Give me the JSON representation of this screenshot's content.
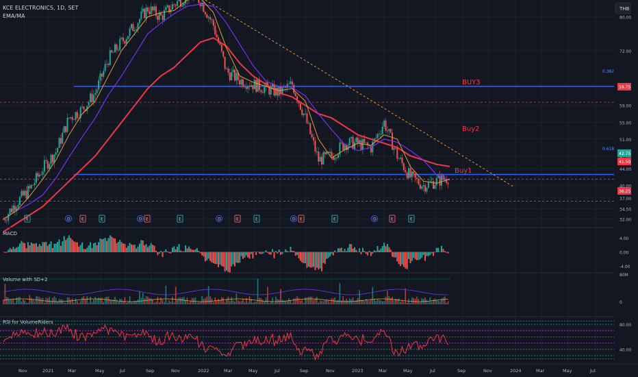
{
  "header": {
    "symbol": "KCE ELECTRONICS, 1D, SET",
    "indicator": "EMA/MA",
    "currency": "THB"
  },
  "panes": {
    "macd_title": "MACD",
    "volume_title": "Volume with SD+2",
    "rsi_title": "RSI for VolumeRiders"
  },
  "annotations": {
    "buy1": "Buy1",
    "buy2": "Buy2",
    "buy3": "BUY3",
    "fib_0382": "0.382(63",
    "fib_0618": "0.618(42"
  },
  "price_badges": {
    "upper_red": "59.75",
    "green": "42.75",
    "red_mid": "41.50",
    "red_low": "36.25"
  },
  "events": [
    "E",
    "D",
    "E",
    "E",
    "D",
    "E",
    "E",
    "D",
    "E",
    "E",
    "D",
    "E",
    "E",
    "D",
    "E",
    "E"
  ],
  "colors": {
    "background": "#131722",
    "grid": "#1e222d",
    "up": "#26a69a",
    "down": "#ef5350",
    "ema200": "#f23645",
    "ma_purple": "#7b2ff7",
    "ema_orange": "#e89c3a",
    "fib_blue": "#2962ff",
    "trend_orange": "#f7931a",
    "rsi": "#f23645"
  },
  "chart_data": {
    "type": "line",
    "title": "KCE ELECTRONICS, 1D, SET",
    "ylabel": "THB",
    "ylim": [
      30,
      84
    ],
    "y_ticks": [
      "80.00",
      "72.00",
      "64.00",
      "59.00",
      "55.00",
      "51.00",
      "47.00",
      "44.00",
      "40.00",
      "37.00",
      "34.50",
      "32.00"
    ],
    "x_ticks": [
      "Nov",
      "2021",
      "Mar",
      "May",
      "Jul",
      "Sep",
      "Nov",
      "2022",
      "Mar",
      "May",
      "Jul",
      "Sep",
      "Nov",
      "2023",
      "Mar",
      "May",
      "Jul",
      "Sep",
      "Nov",
      "2024",
      "Mar",
      "May",
      "Jul"
    ],
    "x": [
      "2020-10",
      "2020-11",
      "2020-12",
      "2021-01",
      "2021-02",
      "2021-03",
      "2021-04",
      "2021-05",
      "2021-06",
      "2021-07",
      "2021-08",
      "2021-09",
      "2021-10",
      "2021-11",
      "2021-12",
      "2022-01",
      "2022-02",
      "2022-03",
      "2022-04",
      "2022-05",
      "2022-06",
      "2022-07",
      "2022-08",
      "2022-09",
      "2022-10",
      "2022-11",
      "2022-12",
      "2023-01",
      "2023-02",
      "2023-03",
      "2023-04",
      "2023-05",
      "2023-06",
      "2023-07",
      "2023-08"
    ],
    "series": [
      {
        "name": "Close",
        "values": [
          32,
          36,
          39,
          44,
          48,
          56,
          58,
          62,
          70,
          74,
          78,
          82,
          80,
          83,
          85,
          84,
          78,
          67,
          65,
          64,
          63,
          62,
          64,
          56,
          46,
          47,
          50,
          50,
          49,
          55,
          47,
          42,
          40,
          41,
          42
        ]
      },
      {
        "name": "EMA200",
        "values": [
          29,
          31,
          33,
          35,
          38,
          41,
          44,
          47,
          51,
          55,
          59,
          63,
          66,
          68,
          71,
          74,
          75,
          73,
          69,
          66,
          64,
          62,
          61,
          59,
          57,
          56,
          54,
          52,
          51,
          50,
          49,
          47,
          46,
          45,
          44.5
        ]
      }
    ],
    "levels": {
      "fib_0382": 63.5,
      "fib_0618": 42.6,
      "buy3": 59.75,
      "buy2_line": 41.5,
      "buy1_low": 36.25
    },
    "macd": {
      "ylim": [
        -6,
        6
      ],
      "ticks": [
        "4.00",
        "0.00",
        "-4.00"
      ]
    },
    "volume": {
      "ticks": [
        "80M",
        "0"
      ]
    },
    "rsi": {
      "ylim": [
        20,
        90
      ],
      "ticks": [
        "80.00",
        "40.00"
      ]
    }
  }
}
